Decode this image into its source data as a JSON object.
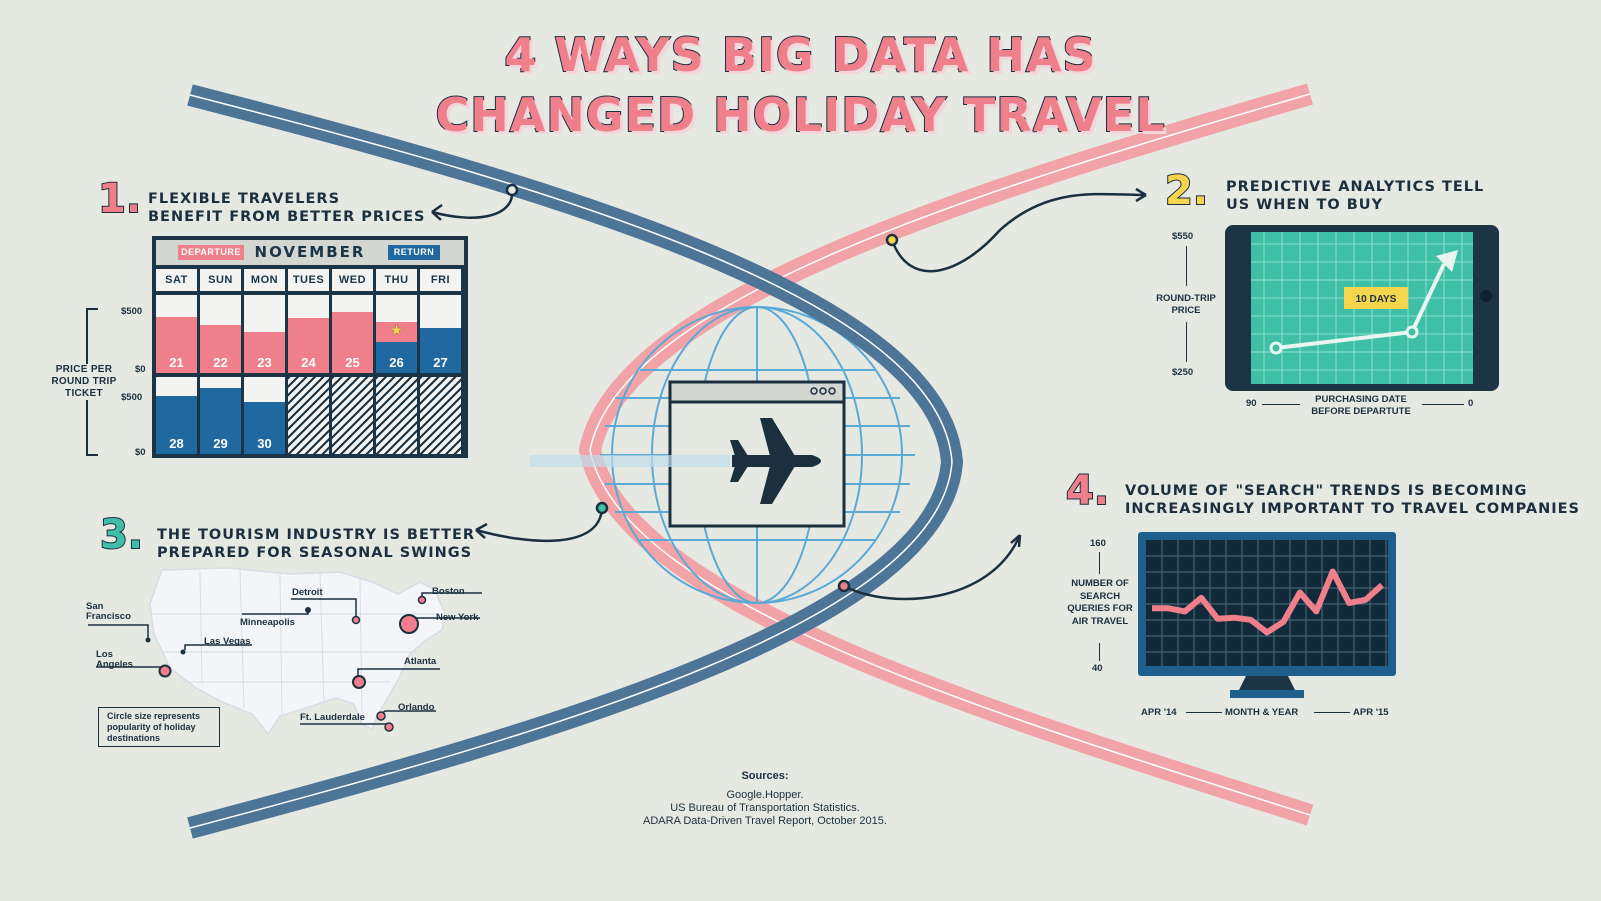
{
  "title": {
    "line1": "4 WAYS BIG DATA HAS",
    "line2": "CHANGED HOLIDAY TRAVEL"
  },
  "colors": {
    "pink": "#f07f8c",
    "navy": "#1b2f3e",
    "blue": "#1f68a0",
    "teal": "#3fbfa6",
    "yellow": "#f4d54d",
    "background": "#e6e9e2"
  },
  "section1": {
    "number": "1.",
    "title_line1": "FLEXIBLE TRAVELERS",
    "title_line2": "BENEFIT FROM BETTER PRICES",
    "calendar": {
      "departure_label": "DEPARTURE",
      "return_label": "RETURN",
      "month": "NOVEMBER",
      "days": [
        "SAT",
        "SUN",
        "MON",
        "TUES",
        "WED",
        "THU",
        "FRI"
      ],
      "row1_dates": [
        "21",
        "22",
        "23",
        "24",
        "25",
        "26",
        "27"
      ],
      "row2_dates": [
        "28",
        "29",
        "30"
      ],
      "row1_price_fraction": [
        0.72,
        0.62,
        0.52,
        0.7,
        0.78,
        0.65,
        0.58
      ],
      "row2_price_fraction": [
        0.75,
        0.86,
        0.68
      ]
    },
    "axis": {
      "label": "PRICE PER ROUND TRIP TICKET",
      "top1": "$500",
      "bottom1": "$0",
      "top2": "$500",
      "bottom2": "$0"
    }
  },
  "section2": {
    "number": "2.",
    "title_line1": "PREDICTIVE ANALYTICS TELL",
    "title_line2": "US WHEN TO BUY",
    "y_top": "$550",
    "y_label": "ROUND-TRIP PRICE",
    "y_bottom": "$250",
    "callout": "10 DAYS",
    "x_left": "90",
    "x_label": "PURCHASING DATE BEFORE DEPARTUTE",
    "x_right": "0"
  },
  "section3": {
    "number": "3.",
    "title_line1": "THE TOURISM INDUSTRY IS BETTER",
    "title_line2": "PREPARED FOR SEASONAL SWINGS",
    "cities": {
      "sf": "San Francisco",
      "la": "Los Angeles",
      "lv": "Las Vegas",
      "minneapolis": "Minneapolis",
      "detroit": "Detroit",
      "boston": "Boston",
      "ny": "New York",
      "atlanta": "Atlanta",
      "orlando": "Orlando",
      "ftl": "Ft. Lauderdale"
    },
    "legend": "Circle size represents popularity of holiday destinations"
  },
  "section4": {
    "number": "4.",
    "title_line1": "VOLUME OF \"SEARCH\" TRENDS IS BECOMING",
    "title_line2": "INCREASINGLY IMPORTANT TO TRAVEL COMPANIES",
    "y_top": "160",
    "y_label": "NUMBER OF SEARCH QUERIES FOR AIR TRAVEL",
    "y_bottom": "40",
    "x_left": "APR '14",
    "x_label": "MONTH & YEAR",
    "x_right": "APR '15",
    "values": [
      95,
      95,
      92,
      105,
      85,
      86,
      84,
      72,
      82,
      110,
      92,
      130,
      100,
      103,
      117
    ]
  },
  "sources": {
    "heading": "Sources:",
    "line1": "Google.Hopper.",
    "line2": "US Bureau of Transportation Statistics.",
    "line3": "ADARA Data-Driven Travel Report, October 2015."
  }
}
